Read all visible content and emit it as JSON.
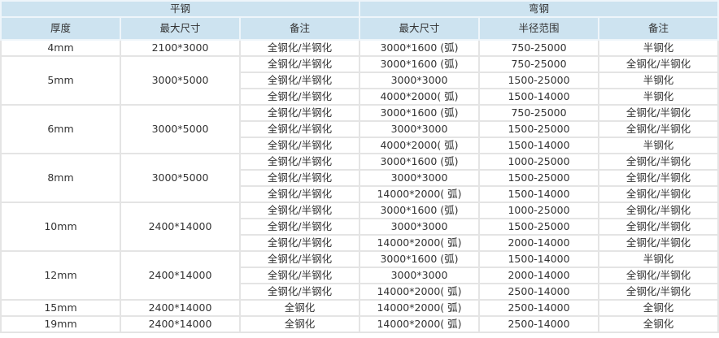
{
  "header": {
    "flat_title": "平钢",
    "bent_title": "弯钢",
    "columns": [
      "厚度",
      "最大尺寸",
      "备注",
      "最大尺寸",
      "半径范围",
      "备注"
    ]
  },
  "groups": [
    {
      "thickness": "4mm",
      "flat_size": "2100*3000",
      "rows": [
        [
          "全钢化/半钢化",
          "3000*1600 (弧)",
          "750-25000",
          "半钢化"
        ]
      ]
    },
    {
      "thickness": "5mm",
      "flat_size": "3000*5000",
      "rows": [
        [
          "全钢化/半钢化",
          "3000*1600 (弧)",
          "750-25000",
          "全钢化/半钢化"
        ],
        [
          "全钢化/半钢化",
          "3000*3000",
          "1500-25000",
          "半钢化"
        ],
        [
          "全钢化/半钢化",
          "4000*2000( 弧)",
          "1500-14000",
          "半钢化"
        ]
      ]
    },
    {
      "thickness": "6mm",
      "flat_size": "3000*5000",
      "rows": [
        [
          "全钢化/半钢化",
          "3000*1600 (弧)",
          "750-25000",
          "全钢化/半钢化"
        ],
        [
          "全钢化/半钢化",
          "3000*3000",
          "1500-25000",
          "全钢化/半钢化"
        ],
        [
          "全钢化/半钢化",
          "4000*2000( 弧)",
          "1500-14000",
          "半钢化"
        ]
      ]
    },
    {
      "thickness": "8mm",
      "flat_size": "3000*5000",
      "rows": [
        [
          "全钢化/半钢化",
          "3000*1600 (弧)",
          "1000-25000",
          "全钢化/半钢化"
        ],
        [
          "全钢化/半钢化",
          "3000*3000",
          "1500-25000",
          "全钢化/半钢化"
        ],
        [
          "全钢化/半钢化",
          "14000*2000( 弧)",
          "1500-14000",
          "全钢化/半钢化"
        ]
      ]
    },
    {
      "thickness": "10mm",
      "flat_size": "2400*14000",
      "rows": [
        [
          "全钢化/半钢化",
          "3000*1600 (弧)",
          "1000-25000",
          "全钢化/半钢化"
        ],
        [
          "全钢化/半钢化",
          "3000*3000",
          "1500-25000",
          "全钢化/半钢化"
        ],
        [
          "全钢化/半钢化",
          "14000*2000( 弧)",
          "2000-14000",
          "全钢化/半钢化"
        ]
      ]
    },
    {
      "thickness": "12mm",
      "flat_size": "2400*14000",
      "rows": [
        [
          "全钢化/半钢化",
          "3000*1600 (弧)",
          "1500-14000",
          "半钢化"
        ],
        [
          "全钢化/半钢化",
          "3000*3000",
          "2000-14000",
          "全钢化/半钢化"
        ],
        [
          "全钢化/半钢化",
          "14000*2000( 弧)",
          "2500-14000",
          "全钢化/半钢化"
        ]
      ]
    },
    {
      "thickness": "15mm",
      "flat_size": "2400*14000",
      "rows": [
        [
          "全钢化",
          "14000*2000( 弧)",
          "2500-14000",
          "全钢化"
        ]
      ]
    },
    {
      "thickness": "19mm",
      "flat_size": "2400*14000",
      "rows": [
        [
          "全钢化",
          "14000*2000( 弧)",
          "2500-14000",
          "全钢化"
        ]
      ]
    }
  ]
}
